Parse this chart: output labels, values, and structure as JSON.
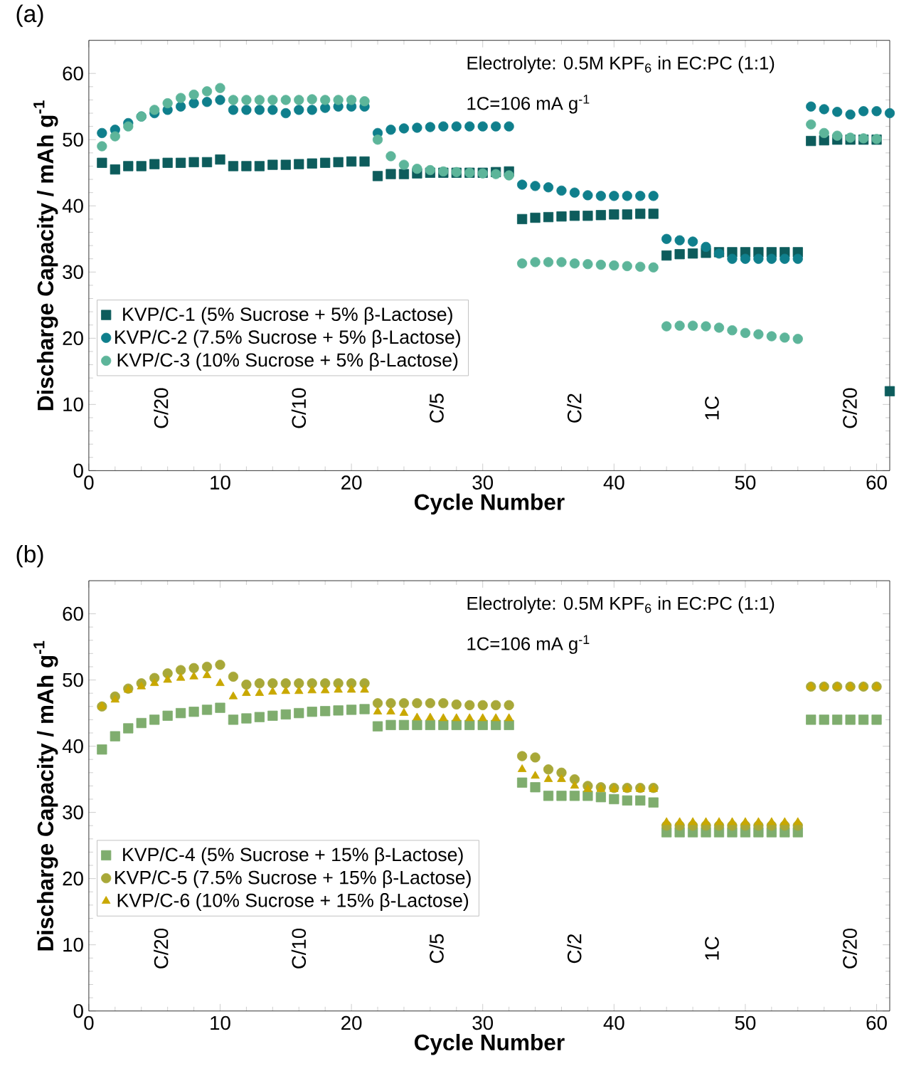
{
  "chart_data": [
    {
      "type": "scatter",
      "title": "(a)",
      "xlabel": "Cycle Number",
      "ylabel": "Discharge Capacity / mAh g$^{-1}$",
      "x": [
        1,
        2,
        3,
        4,
        5,
        6,
        7,
        8,
        9,
        10,
        11,
        12,
        13,
        14,
        15,
        16,
        17,
        18,
        19,
        20,
        21,
        22,
        23,
        24,
        25,
        26,
        27,
        28,
        29,
        30,
        31,
        32,
        33,
        34,
        35,
        36,
        37,
        38,
        39,
        40,
        41,
        42,
        43,
        44,
        45,
        46,
        47,
        48,
        49,
        50,
        51,
        52,
        53,
        54,
        55,
        56,
        57,
        58,
        59,
        60,
        61
      ],
      "series": [
        {
          "name": "KVP/C-1 (5% Sucrose + 5% β-Lactose)",
          "color": "#0d5c5c",
          "marker": "square",
          "values": [
            46.5,
            45.5,
            46,
            46,
            46.3,
            46.5,
            46.5,
            46.6,
            46.6,
            47,
            46,
            46,
            46,
            46.2,
            46.2,
            46.3,
            46.4,
            46.5,
            46.6,
            46.7,
            46.7,
            44.5,
            44.8,
            44.8,
            44.9,
            45,
            45,
            45,
            45,
            45,
            45.1,
            45.2,
            38,
            38.2,
            38.3,
            38.4,
            38.5,
            38.5,
            38.6,
            38.7,
            38.7,
            38.8,
            38.8,
            32.5,
            32.7,
            32.8,
            32.9,
            33,
            33,
            33,
            33,
            33,
            33,
            33,
            49.8,
            49.9,
            50,
            50,
            50,
            50,
            12
          ]
        },
        {
          "name": "KVP/C-2 (7.5% Sucrose + 5% β-Lactose)",
          "color": "#0f7f8c",
          "marker": "circle",
          "values": [
            51,
            51.5,
            52.5,
            53.5,
            54,
            54.5,
            55,
            55.5,
            55.7,
            56,
            54.5,
            54.5,
            54.5,
            54.5,
            54,
            54.5,
            54.5,
            54.8,
            55,
            55,
            55,
            51,
            51.5,
            51.7,
            51.8,
            51.9,
            52,
            52,
            52,
            52,
            52,
            52,
            43.2,
            43,
            42.8,
            42.3,
            42,
            41.6,
            41.5,
            41.5,
            41.5,
            41.5,
            41.5,
            35,
            34.8,
            34.6,
            33.8,
            32.8,
            32,
            32,
            32,
            32,
            32,
            32,
            55,
            54.6,
            54.2,
            53.8,
            54.3,
            54.3,
            54
          ]
        },
        {
          "name": "KVP/C-3 (10% Sucrose + 5% β-Lactose)",
          "color": "#5db59a",
          "marker": "circle",
          "values": [
            49,
            50.5,
            52,
            53.5,
            54.5,
            55.5,
            56.3,
            56.8,
            57.3,
            57.8,
            56,
            56,
            56,
            56,
            56,
            56,
            56.1,
            56,
            56,
            56,
            55.8,
            50,
            47.5,
            46.2,
            45.6,
            45.4,
            45.2,
            45.1,
            45,
            44.9,
            44.8,
            44.6,
            31.3,
            31.5,
            31.5,
            31.5,
            31.3,
            31.2,
            31.1,
            31,
            30.9,
            30.8,
            30.7,
            21.8,
            21.9,
            21.9,
            21.8,
            21.6,
            21.2,
            20.8,
            20.6,
            20.3,
            20.1,
            19.9,
            52.3,
            51,
            50.6,
            50.3,
            50.2,
            50.1,
            null
          ]
        }
      ],
      "xlim": [
        0,
        61
      ],
      "ylim": [
        0,
        65
      ],
      "xticks": [
        0,
        10,
        20,
        30,
        40,
        50,
        60
      ],
      "yticks": [
        0,
        10,
        20,
        30,
        40,
        50,
        60
      ],
      "grid": false,
      "legend": "left",
      "annotations": [
        "Electrolyte: 0.5M KPF$_{6}$ in EC:PC (1:1)",
        "1C=106 mA g$^{-1}$",
        "C/20",
        "C/10",
        "C/5",
        "C/2",
        "1C",
        "C/20"
      ]
    },
    {
      "type": "scatter",
      "title": "(b)",
      "xlabel": "Cycle Number",
      "ylabel": "Discharge Capacity / mAh g$^{-1}$",
      "x": [
        1,
        2,
        3,
        4,
        5,
        6,
        7,
        8,
        9,
        10,
        11,
        12,
        13,
        14,
        15,
        16,
        17,
        18,
        19,
        20,
        21,
        22,
        23,
        24,
        25,
        26,
        27,
        28,
        29,
        30,
        31,
        32,
        33,
        34,
        35,
        36,
        37,
        38,
        39,
        40,
        41,
        42,
        43,
        44,
        45,
        46,
        47,
        48,
        49,
        50,
        51,
        52,
        53,
        54,
        55,
        56,
        57,
        58,
        59,
        60
      ],
      "series": [
        {
          "name": "KVP/C-4 (5% Sucrose + 15% β-Lactose)",
          "color": "#7fad6e",
          "marker": "square",
          "values": [
            39.5,
            41.5,
            42.7,
            43.5,
            44,
            44.6,
            45,
            45.2,
            45.5,
            45.8,
            44,
            44.2,
            44.4,
            44.6,
            44.8,
            45,
            45.2,
            45.3,
            45.4,
            45.5,
            45.6,
            43,
            43.2,
            43.2,
            43.2,
            43.2,
            43.2,
            43.2,
            43.2,
            43.2,
            43.2,
            43.2,
            34.5,
            33.8,
            32.5,
            32.5,
            32.5,
            32.5,
            32.3,
            32,
            31.8,
            31.8,
            31.5,
            27,
            27,
            27,
            27,
            27,
            27,
            27,
            27,
            27,
            27,
            27,
            44,
            44,
            44,
            44,
            44,
            44
          ]
        },
        {
          "name": "KVP/C-5 (7.5% Sucrose + 15% β-Lactose)",
          "color": "#a8a838",
          "marker": "circle",
          "values": [
            46,
            47.5,
            48.7,
            49.5,
            50.3,
            51,
            51.5,
            51.8,
            52,
            52.3,
            50.5,
            49.3,
            49.5,
            49.5,
            49.5,
            49.5,
            49.5,
            49.5,
            49.5,
            49.5,
            49.5,
            46.5,
            46.5,
            46.5,
            46.5,
            46.5,
            46.5,
            46.3,
            46.2,
            46.2,
            46.2,
            46.2,
            38.5,
            38.3,
            36.5,
            36,
            35,
            34,
            33.8,
            33.7,
            33.7,
            33.7,
            33.7,
            28,
            28,
            28,
            28,
            28,
            28,
            28,
            28,
            28,
            28,
            28,
            49,
            49,
            49,
            49,
            49,
            49
          ]
        },
        {
          "name": "KVP/C-6 (10% Sucrose + 15% β-Lactose)",
          "color": "#c9a800",
          "marker": "triangle",
          "values": [
            46,
            47,
            48.5,
            49,
            49.5,
            50,
            50.3,
            50.5,
            50.7,
            49.5,
            47.5,
            48,
            48,
            48.2,
            48.3,
            48.3,
            48.4,
            48.4,
            48.5,
            48.5,
            48.5,
            45.2,
            45.2,
            45,
            44.3,
            44.3,
            44.2,
            44.2,
            44.2,
            44.2,
            44.2,
            44.2,
            36.5,
            35.5,
            35,
            35,
            34,
            33.5,
            33.5,
            33.5,
            33.5,
            33.5,
            33.5,
            28.5,
            28.5,
            28.5,
            28.5,
            28.5,
            28.5,
            28.5,
            28.5,
            28.5,
            28.5,
            28.5,
            49,
            49,
            49,
            49,
            49,
            49
          ]
        }
      ],
      "xlim": [
        0,
        61
      ],
      "ylim": [
        0,
        65
      ],
      "xticks": [
        0,
        10,
        20,
        30,
        40,
        50,
        60
      ],
      "yticks": [
        0,
        10,
        20,
        30,
        40,
        50,
        60
      ],
      "grid": false,
      "legend": "bottom left",
      "annotations": [
        "Electrolyte: 0.5M KPF$_{6}$ in EC:PC (1:1)",
        "1C=106 mA g$^{-1}$",
        "C/20",
        "C/10",
        "C/5",
        "C/2",
        "1C",
        "C/20"
      ]
    }
  ]
}
